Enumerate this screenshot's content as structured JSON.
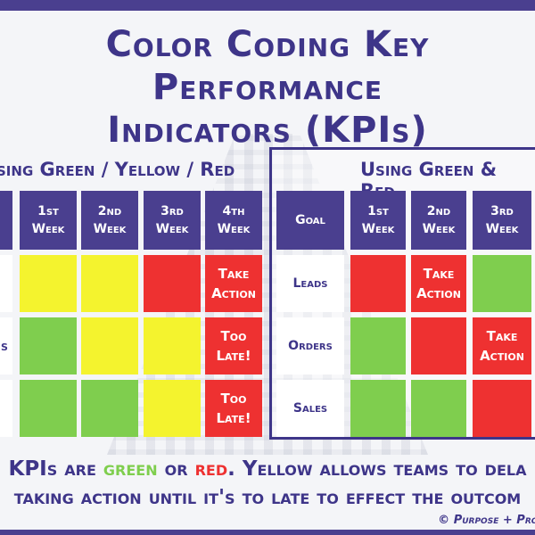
{
  "title": {
    "line1": "Color Coding Key Performance",
    "line2": "Indicators (KPIs)"
  },
  "colors": {
    "brand": "#4a3f8f",
    "green": "#7fce4e",
    "yellow": "#f4f32e",
    "red": "#ee3131"
  },
  "left_table": {
    "heading": "sing Green / Yellow / Red",
    "headers": [
      "1st\nWeek",
      "2nd\nWeek",
      "3rd\nWeek",
      "4th\nWeek"
    ],
    "rows": [
      {
        "label": "",
        "cells": [
          {
            "color": "yellow",
            "text": ""
          },
          {
            "color": "yellow",
            "text": ""
          },
          {
            "color": "red",
            "text": ""
          },
          {
            "color": "red",
            "text": "Take\nAction"
          }
        ]
      },
      {
        "label": "s",
        "cells": [
          {
            "color": "green",
            "text": ""
          },
          {
            "color": "yellow",
            "text": ""
          },
          {
            "color": "yellow",
            "text": ""
          },
          {
            "color": "red",
            "text": "Too\nLate!"
          }
        ]
      },
      {
        "label": "",
        "cells": [
          {
            "color": "green",
            "text": ""
          },
          {
            "color": "green",
            "text": ""
          },
          {
            "color": "yellow",
            "text": ""
          },
          {
            "color": "red",
            "text": "Too\nLate!"
          }
        ]
      }
    ]
  },
  "right_table": {
    "heading": "Using Green & Red",
    "headers": [
      "Goal",
      "1st\nWeek",
      "2nd\nWeek",
      "3rd\nWeek"
    ],
    "rows": [
      {
        "label": "Leads",
        "cells": [
          {
            "color": "red",
            "text": ""
          },
          {
            "color": "red",
            "text": "Take\nAction"
          },
          {
            "color": "green",
            "text": ""
          }
        ]
      },
      {
        "label": "Orders",
        "cells": [
          {
            "color": "green",
            "text": ""
          },
          {
            "color": "red",
            "text": ""
          },
          {
            "color": "red",
            "text": "Take\nAction"
          }
        ]
      },
      {
        "label": "Sales",
        "cells": [
          {
            "color": "green",
            "text": ""
          },
          {
            "color": "green",
            "text": ""
          },
          {
            "color": "red",
            "text": ""
          }
        ]
      }
    ]
  },
  "footer": {
    "part1": "KPIs are ",
    "green_word": "green",
    "part2": " or ",
    "red_word": "red",
    "part3": ". Yellow allows teams to dela",
    "line2": "taking action until it's to late to effect the outcom",
    "credit": "© Purpose + Proc"
  }
}
